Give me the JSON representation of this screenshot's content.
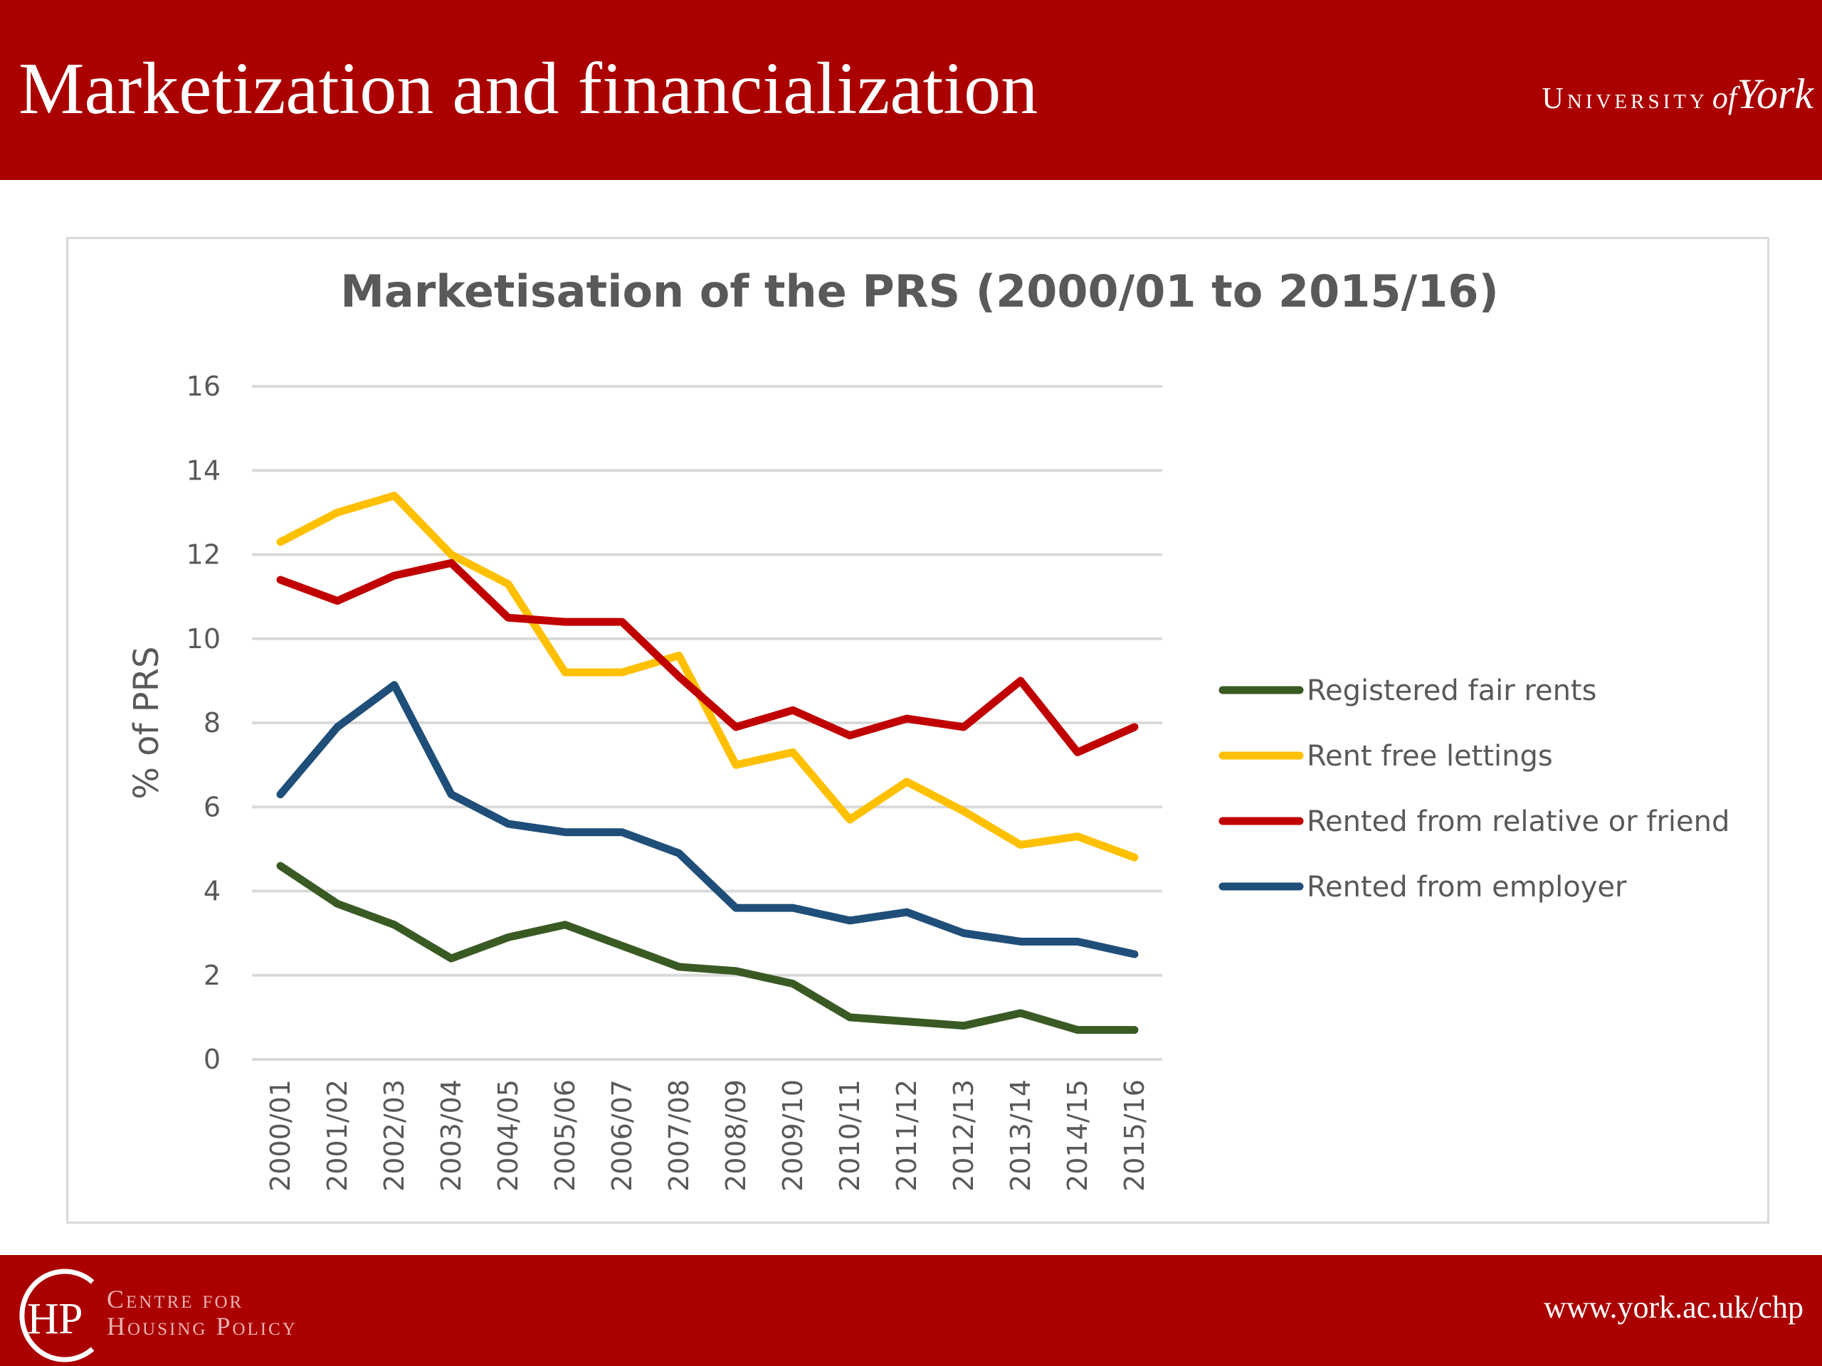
{
  "slide": {
    "title": "Marketization and financialization",
    "university_logo": {
      "main": "University",
      "of": "of",
      "york": "York"
    },
    "footer": {
      "chp_mark": "CHP",
      "chp_line1": "Centre for",
      "chp_line2": "Housing Policy",
      "url": "www.york.ac.uk/chp"
    },
    "colors": {
      "brand_red": "#ab0000",
      "white": "#ffffff"
    }
  },
  "chart_data": {
    "type": "line",
    "title": "Marketisation of the PRS (2000/01 to 2015/16)",
    "xlabel": "",
    "ylabel": "% of PRS",
    "ylim": [
      0,
      16
    ],
    "y_ticks": [
      "0",
      "2",
      "4",
      "6",
      "8",
      "10",
      "12",
      "14",
      "16"
    ],
    "grid": true,
    "legend_position": "right",
    "categories": [
      "2000/01",
      "2001/02",
      "2002/03",
      "2003/04",
      "2004/05",
      "2005/06",
      "2006/07",
      "2007/08",
      "2008/09",
      "2009/10",
      "2010/11",
      "2011/12",
      "2012/13",
      "2013/14",
      "2014/15",
      "2015/16"
    ],
    "series": [
      {
        "name": "Registered fair rents",
        "color": "#3a5a24",
        "values": [
          4.6,
          3.7,
          3.2,
          2.4,
          2.9,
          3.2,
          2.7,
          2.2,
          2.1,
          1.8,
          1.0,
          0.9,
          0.8,
          1.1,
          0.7,
          0.7
        ]
      },
      {
        "name": "Rent free lettings",
        "color": "#ffc000",
        "values": [
          12.3,
          13.0,
          13.4,
          12.0,
          11.3,
          9.2,
          9.2,
          9.6,
          7.0,
          7.3,
          5.7,
          6.6,
          5.9,
          5.1,
          5.3,
          4.8
        ]
      },
      {
        "name": "Rented from relative or friend",
        "color": "#c00000",
        "values": [
          11.4,
          10.9,
          11.5,
          11.8,
          10.5,
          10.4,
          10.4,
          9.1,
          7.9,
          8.3,
          7.7,
          8.1,
          7.9,
          9.0,
          7.3,
          7.9
        ]
      },
      {
        "name": "Rented from employer",
        "color": "#1f4e79",
        "values": [
          6.3,
          7.9,
          8.9,
          6.3,
          5.6,
          5.4,
          5.4,
          4.9,
          3.6,
          3.6,
          3.3,
          3.5,
          3.0,
          2.8,
          2.8,
          2.5
        ]
      }
    ]
  }
}
